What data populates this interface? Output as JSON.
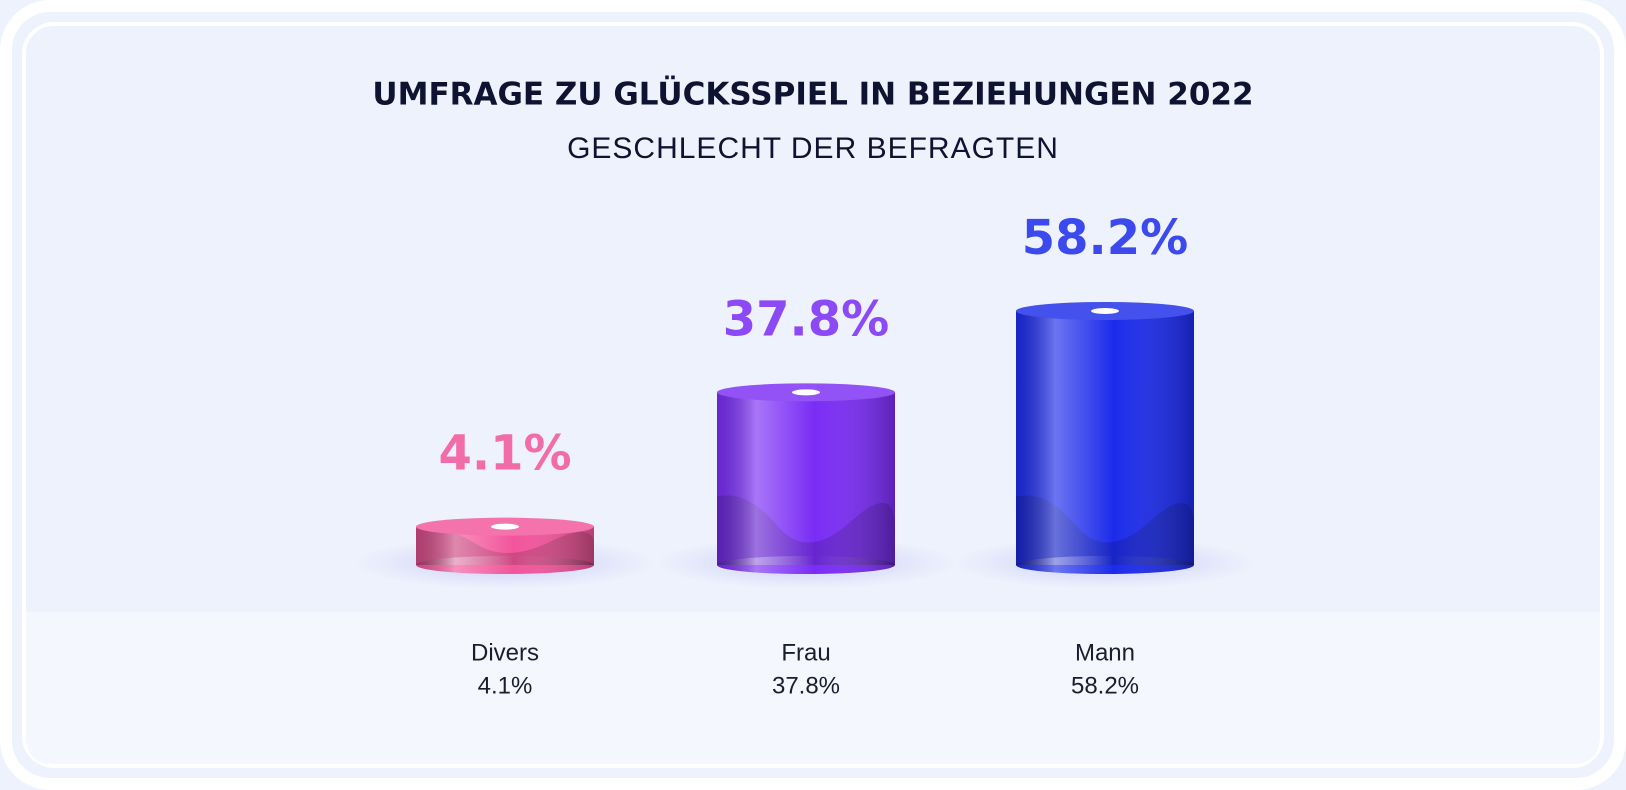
{
  "chart_data": {
    "type": "bar",
    "title": "UMFRAGE ZU GLÜCKSSPIEL IN BEZIEHUNGEN 2022",
    "subtitle": "GESCHLECHT DER BEFRAGTEN",
    "categories": [
      "Divers",
      "Frau",
      "Mann"
    ],
    "values": [
      4.1,
      37.8,
      58.2
    ],
    "value_labels": [
      "4.1%",
      "37.8%",
      "58.2%"
    ],
    "colors": [
      "#f2559b",
      "#7a2cf5",
      "#1c2bea"
    ]
  }
}
